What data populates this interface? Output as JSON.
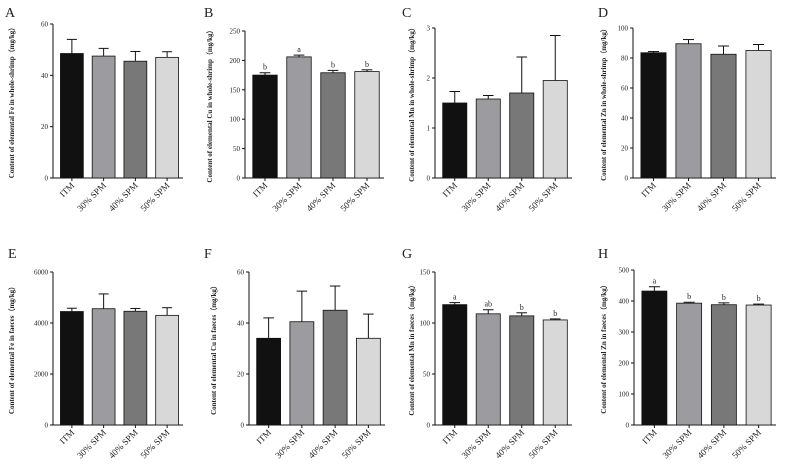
{
  "figure": {
    "colors": [
      "#111111",
      "#9c9ca0",
      "#787878",
      "#d8d8d8"
    ]
  },
  "chart_data": [
    {
      "panel": "A",
      "type": "bar",
      "ylabel": "Content of elemental Fe in whole-shrimp（mg/kg）",
      "categories": [
        "ITM",
        "30% SPM",
        "40% SPM",
        "50% SPM"
      ],
      "values": [
        48.5,
        47.5,
        45.5,
        47.0
      ],
      "errors": [
        5.5,
        3.0,
        3.8,
        2.2
      ],
      "letters": [],
      "ylim": [
        0,
        60
      ],
      "yticks": [
        "0",
        "20",
        "40",
        "60"
      ]
    },
    {
      "panel": "B",
      "type": "bar",
      "ylabel": "Content of elemental Cu in whole-shrimp（mg/kg）",
      "categories": [
        "ITM",
        "30% SPM",
        "40% SPM",
        "50% SPM"
      ],
      "values": [
        175,
        206,
        179,
        181
      ],
      "errors": [
        4,
        3,
        4,
        3
      ],
      "letters": [
        "b",
        "a",
        "b",
        "b"
      ],
      "ylim": [
        0,
        250
      ],
      "yticks": [
        "0",
        "50",
        "100",
        "150",
        "200",
        "250"
      ]
    },
    {
      "panel": "C",
      "type": "bar",
      "ylabel": "Content of elemental Mn in whole-shrimp（mg/kg）",
      "categories": [
        "ITM",
        "30% SPM",
        "40% SPM",
        "50% SPM"
      ],
      "values": [
        1.5,
        1.58,
        1.7,
        1.95
      ],
      "errors": [
        0.23,
        0.07,
        0.72,
        0.9
      ],
      "letters": [],
      "ylim": [
        0,
        3
      ],
      "yticks": [
        "0",
        "1",
        "2",
        "3"
      ]
    },
    {
      "panel": "D",
      "type": "bar",
      "ylabel": "Content of elemental Zn in whole-shrimp（mg/kg）",
      "categories": [
        "ITM",
        "30% SPM",
        "40% SPM",
        "50% SPM"
      ],
      "values": [
        83.5,
        89.5,
        82.5,
        85.0
      ],
      "errors": [
        0.8,
        2.8,
        5.5,
        4.0
      ],
      "letters": [],
      "ylim": [
        0,
        100
      ],
      "yticks": [
        "0",
        "20",
        "40",
        "60",
        "80",
        "100"
      ]
    },
    {
      "panel": "E",
      "type": "bar",
      "ylabel": "Content of elemental Fe in faeces（mg/kg）",
      "categories": [
        "ITM",
        "30% SPM",
        "40% SPM",
        "50% SPM"
      ],
      "values": [
        4450,
        4560,
        4460,
        4300
      ],
      "errors": [
        130,
        580,
        110,
        300
      ],
      "letters": [],
      "ylim": [
        0,
        6000
      ],
      "yticks": [
        "0",
        "2000",
        "4000",
        "6000"
      ]
    },
    {
      "panel": "F",
      "type": "bar",
      "ylabel": "Content of elemental Cu in faeces（mg/kg）",
      "categories": [
        "ITM",
        "30% SPM",
        "40% SPM",
        "50% SPM"
      ],
      "values": [
        34,
        40.5,
        45,
        34
      ],
      "errors": [
        8,
        12,
        9.5,
        9.5
      ],
      "letters": [],
      "ylim": [
        0,
        60
      ],
      "yticks": [
        "0",
        "20",
        "40",
        "60"
      ]
    },
    {
      "panel": "G",
      "type": "bar",
      "ylabel": "Content of elemental Mn in faeces（mg/kg）",
      "categories": [
        "ITM",
        "30% SPM",
        "40% SPM",
        "50% SPM"
      ],
      "values": [
        118,
        109,
        107,
        103
      ],
      "errors": [
        2,
        4,
        3,
        1
      ],
      "letters": [
        "a",
        "ab",
        "b",
        "b"
      ],
      "ylim": [
        0,
        150
      ],
      "yticks": [
        "0",
        "50",
        "100",
        "150"
      ]
    },
    {
      "panel": "H",
      "type": "bar",
      "ylabel": "Content of elemental Zn in faeces（mg/kg）",
      "categories": [
        "ITM",
        "30% SPM",
        "40% SPM",
        "50% SPM"
      ],
      "values": [
        432,
        393,
        388,
        387
      ],
      "errors": [
        14,
        3,
        6,
        3
      ],
      "letters": [
        "a",
        "b",
        "b",
        "b"
      ],
      "ylim": [
        0,
        500
      ],
      "yticks": [
        "0",
        "100",
        "200",
        "300",
        "400",
        "500"
      ]
    }
  ]
}
